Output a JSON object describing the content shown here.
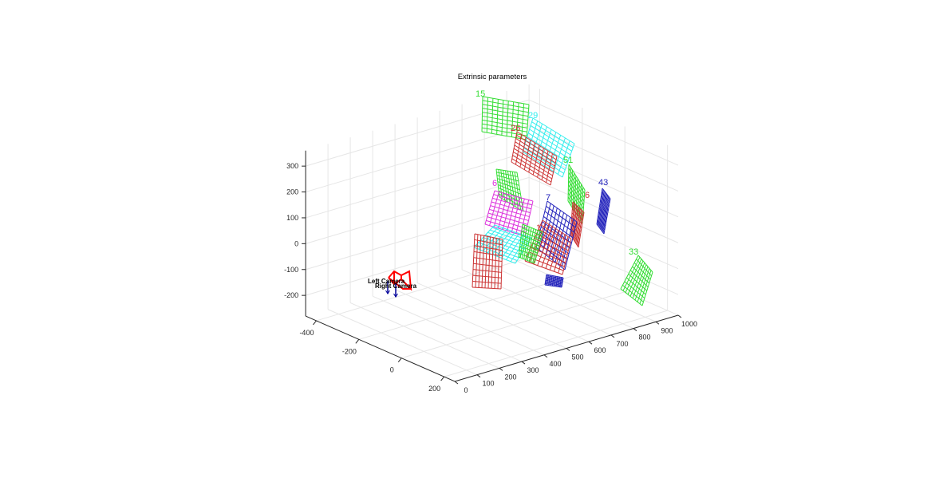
{
  "chart_data": {
    "type": "3d-wireframe",
    "title": "Extrinsic parameters",
    "xlabel": "",
    "ylabel": "",
    "zlabel": "",
    "x_ticks": [
      -400,
      -200,
      0,
      200
    ],
    "y_ticks": [
      0,
      100,
      200,
      300,
      400,
      500,
      600,
      700,
      800,
      900,
      1000
    ],
    "z_ticks": [
      300,
      200,
      100,
      0,
      -100,
      -200
    ],
    "grid": true,
    "cameras": [
      "Left Camera",
      "Right Camera"
    ],
    "camera_color": "#ff0000",
    "boards": [
      {
        "label": "15",
        "color": "#33dd33"
      },
      {
        "label": "29",
        "color": "#33eeee"
      },
      {
        "label": "26",
        "color": "#cc3333"
      },
      {
        "label": "51",
        "color": "#33dd33"
      },
      {
        "label": "",
        "color": "#33dd33"
      },
      {
        "label": "6",
        "color": "#dd33dd"
      },
      {
        "label": "6",
        "color": "#cc3333"
      },
      {
        "label": "43",
        "color": "#2222bb"
      },
      {
        "label": "7",
        "color": "#2222bb"
      },
      {
        "label": "1",
        "color": "#cc3333"
      },
      {
        "label": "",
        "color": "#33eeee"
      },
      {
        "label": "",
        "color": "#cc3333"
      },
      {
        "label": "",
        "color": "#33dd33"
      },
      {
        "label": "",
        "color": "#2222bb"
      },
      {
        "label": "33",
        "color": "#33dd33"
      }
    ]
  }
}
